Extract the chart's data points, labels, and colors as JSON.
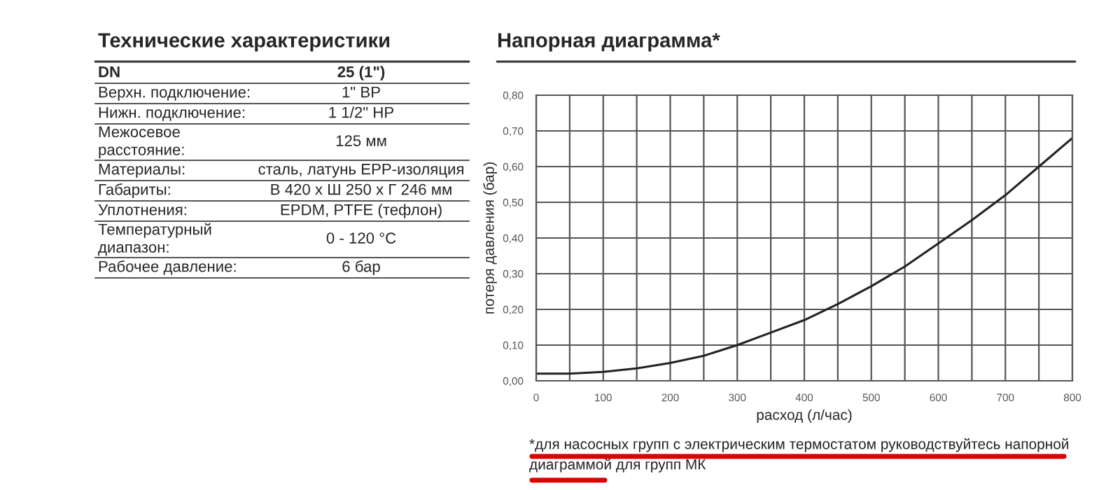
{
  "chart_data": [
    {
      "type": "other",
      "title": "Технические характеристики",
      "annotations": [
        "DN",
        "25 (1\")",
        "Верхн. подключение:",
        "1\" ВР",
        "Нижн. подключение:",
        "1 1/2\" НР",
        "Межосевое расстояние:",
        "125 мм",
        "Материалы:",
        "сталь, латунь EPP-изоляция",
        "Габариты:",
        "В 420 х Ш 250 х Г 246 мм",
        "Уплотнения:",
        "EPDM, PTFE (тефлон)",
        "Температурный диапазон:",
        "0 - 120 °C",
        "Рабочее давление:",
        "6 бар"
      ]
    },
    {
      "type": "line",
      "title": "Напорная диаграмма*",
      "xlabel": "расход (л/час)",
      "ylabel": "потеря давления (бар)",
      "x": [
        0,
        50,
        100,
        150,
        200,
        250,
        300,
        350,
        400,
        450,
        500,
        550,
        600,
        650,
        700,
        750,
        800
      ],
      "series": [
        {
          "color": "#222222",
          "values": [
            0.02,
            0.02,
            0.025,
            0.035,
            0.05,
            0.07,
            0.1,
            0.135,
            0.17,
            0.215,
            0.265,
            0.32,
            0.385,
            0.45,
            0.52,
            0.6,
            0.68
          ]
        }
      ],
      "xlim": [
        0,
        800
      ],
      "ylim": [
        0,
        0.8
      ],
      "xticks": [
        0,
        {
          "value": 50,
          "label": null
        },
        100,
        {
          "value": 150,
          "label": null
        },
        200,
        {
          "value": 250,
          "label": null
        },
        300,
        {
          "value": 350,
          "label": null
        },
        400,
        {
          "value": 450,
          "label": null
        },
        500,
        {
          "value": 550,
          "label": null
        },
        600,
        {
          "value": 650,
          "label": null
        },
        700,
        {
          "value": 750,
          "label": null
        },
        800
      ],
      "yticks": [
        {
          "value": 0,
          "label": "0,00"
        },
        {
          "value": 0.1,
          "label": "0,10"
        },
        {
          "value": 0.2,
          "label": "0,20"
        },
        {
          "value": 0.3,
          "label": "0,30"
        },
        {
          "value": 0.4,
          "label": "0,40"
        },
        {
          "value": 0.5,
          "label": "0,50"
        },
        {
          "value": 0.6,
          "label": "0,60"
        },
        {
          "value": 0.7,
          "label": "0,70"
        },
        {
          "value": 0.8,
          "label": "0,80"
        }
      ],
      "grid": true,
      "line_style": "solid",
      "annotations": [
        "*для насосных групп с электрическим термостатом руководствуйтесь напорной диаграммой для групп МК"
      ]
    }
  ]
}
